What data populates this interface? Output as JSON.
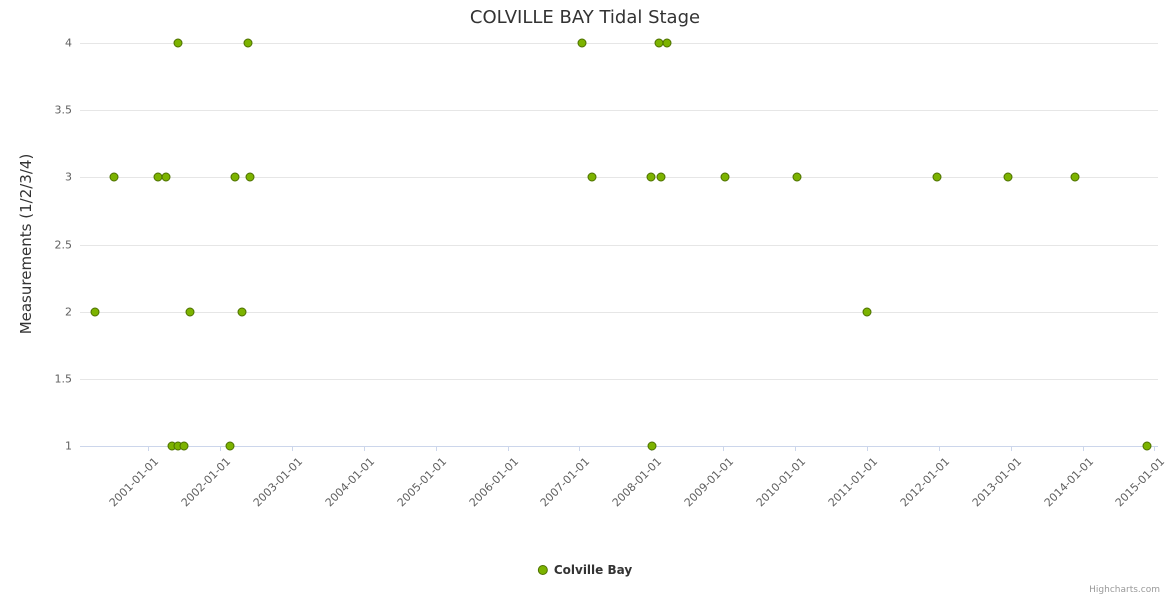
{
  "title": "COLVILLE BAY Tidal Stage",
  "legend": {
    "label": "Colville Bay"
  },
  "credits": "Highcharts.com",
  "colors": {
    "point_fill": "#7cb300",
    "point_stroke": "#4d7000",
    "grid": "#e6e6e6",
    "axis_line": "#ccd6eb",
    "axis_text": "#606060",
    "title_text": "#333333"
  },
  "chart_data": {
    "type": "scatter",
    "title": "COLVILLE BAY Tidal Stage",
    "xlabel": "",
    "ylabel": "Measurements (1/2/3/4)",
    "ylim": [
      1,
      4
    ],
    "y_ticks": [
      1,
      1.5,
      2,
      2.5,
      3,
      3.5,
      4
    ],
    "x_tick_labels": [
      "2001-01-01",
      "2002-01-01",
      "2003-01-01",
      "2004-01-01",
      "2005-01-01",
      "2006-01-01",
      "2007-01-01",
      "2008-01-01",
      "2009-01-01",
      "2010-01-01",
      "2011-01-01",
      "2012-01-01",
      "2013-01-01",
      "2014-01-01",
      "2015-01-01"
    ],
    "xlim_years": [
      2000.05,
      2015.05
    ],
    "grid": true,
    "legend_position": "bottom",
    "series": [
      {
        "name": "Colville Bay",
        "points": [
          {
            "x": 2000.26,
            "y": 2
          },
          {
            "x": 2000.53,
            "y": 3
          },
          {
            "x": 2001.14,
            "y": 3
          },
          {
            "x": 2001.24,
            "y": 3
          },
          {
            "x": 2001.33,
            "y": 1
          },
          {
            "x": 2001.42,
            "y": 1
          },
          {
            "x": 2001.5,
            "y": 1
          },
          {
            "x": 2001.42,
            "y": 4
          },
          {
            "x": 2001.58,
            "y": 2
          },
          {
            "x": 2002.14,
            "y": 1
          },
          {
            "x": 2002.21,
            "y": 3
          },
          {
            "x": 2002.31,
            "y": 2
          },
          {
            "x": 2002.39,
            "y": 4
          },
          {
            "x": 2002.42,
            "y": 3
          },
          {
            "x": 2007.04,
            "y": 4
          },
          {
            "x": 2007.17,
            "y": 3
          },
          {
            "x": 2008.0,
            "y": 3
          },
          {
            "x": 2008.01,
            "y": 1
          },
          {
            "x": 2008.11,
            "y": 4
          },
          {
            "x": 2008.14,
            "y": 3
          },
          {
            "x": 2008.22,
            "y": 4
          },
          {
            "x": 2009.03,
            "y": 3
          },
          {
            "x": 2010.03,
            "y": 3
          },
          {
            "x": 2011.0,
            "y": 2
          },
          {
            "x": 2011.97,
            "y": 3
          },
          {
            "x": 2012.96,
            "y": 3
          },
          {
            "x": 2013.9,
            "y": 3
          },
          {
            "x": 2014.89,
            "y": 1
          }
        ]
      }
    ]
  }
}
